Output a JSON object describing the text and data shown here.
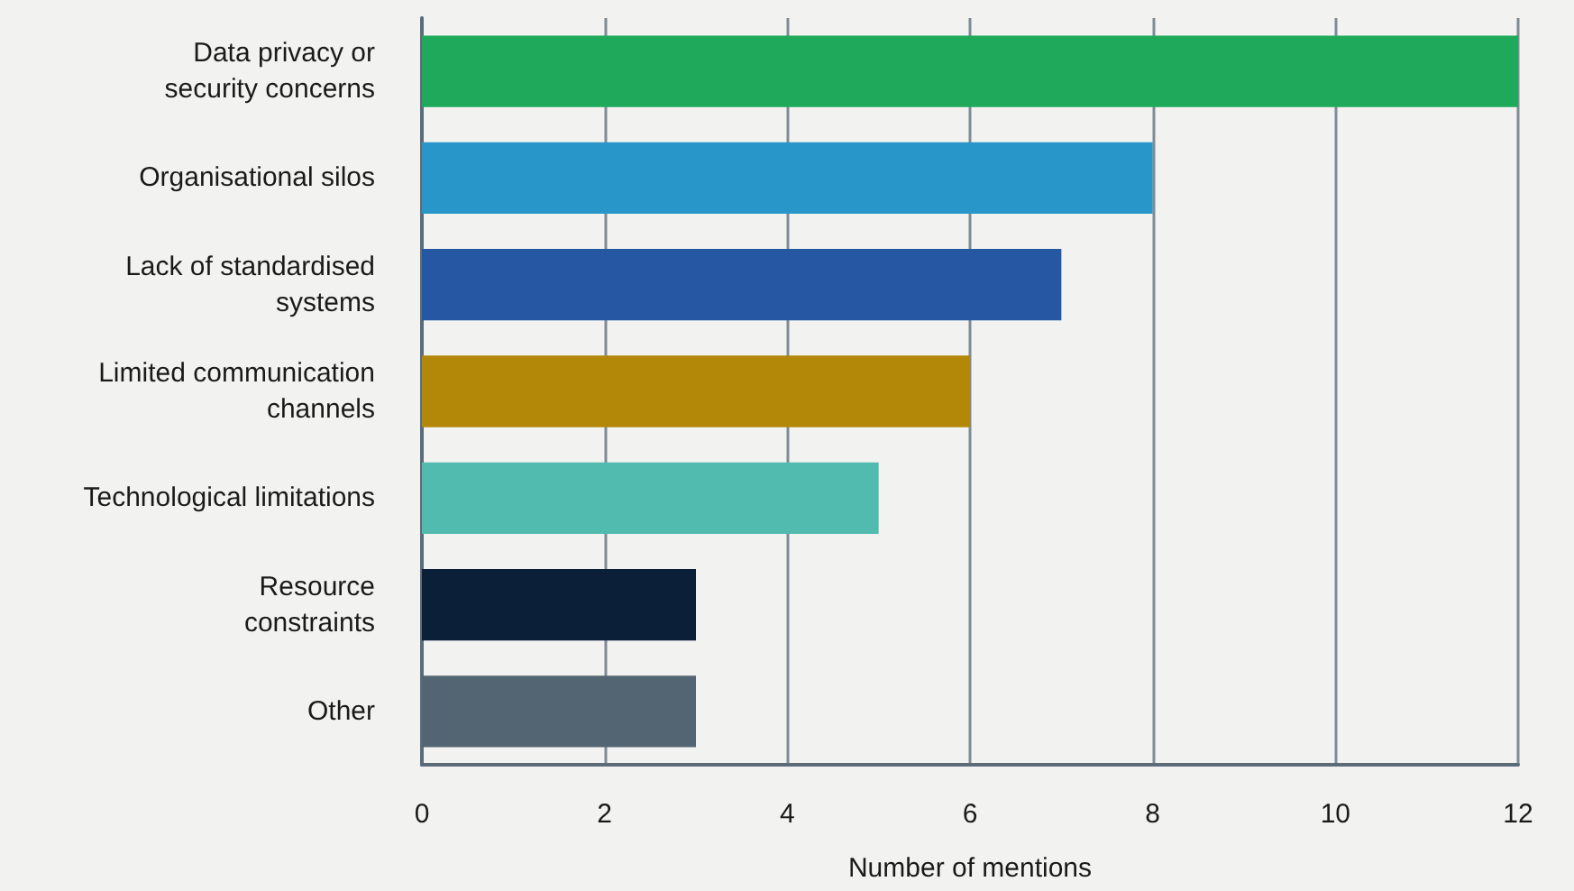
{
  "chart_data": {
    "type": "bar",
    "orientation": "horizontal",
    "xlabel": "Number of mentions",
    "categories": [
      "Data privacy or\nsecurity concerns",
      "Organisational silos",
      "Lack of standardised\nsystems",
      "Limited communication\nchannels",
      "Technological limitations",
      "Resource\nconstraints",
      "Other"
    ],
    "values": [
      12,
      8,
      7,
      6,
      5,
      3,
      3
    ],
    "colors": [
      "#1eaa5a",
      "#2896c8",
      "#2557a2",
      "#b38708",
      "#52bbb0",
      "#0c1f38",
      "#536573"
    ],
    "xlim": [
      0,
      12
    ],
    "xticks": [
      0,
      2,
      4,
      6,
      8,
      10,
      12
    ],
    "grid": "x"
  }
}
